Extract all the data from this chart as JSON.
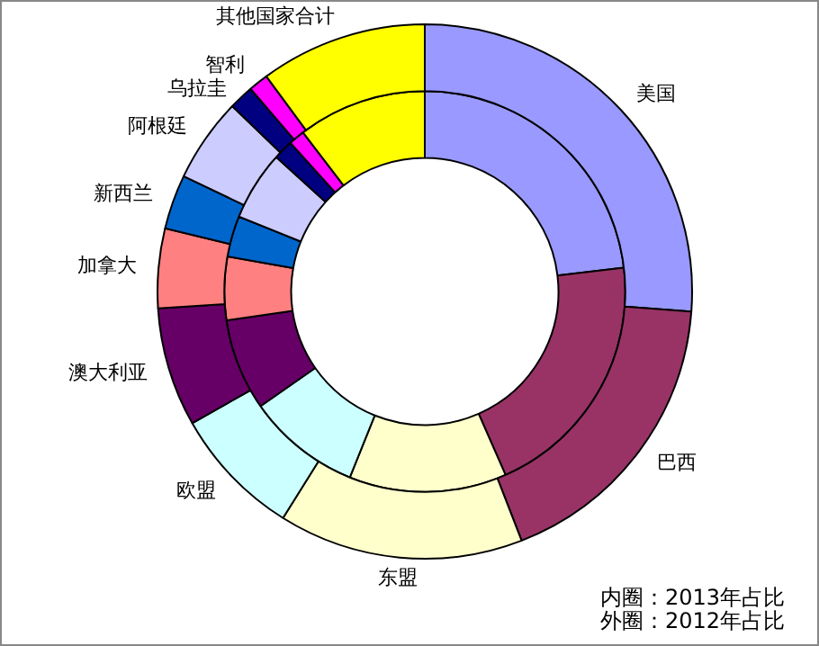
{
  "chart_data": {
    "type": "donut",
    "categories": [
      "美国",
      "巴西",
      "东盟",
      "欧盟",
      "澳大利亚",
      "加拿大",
      "新西兰",
      "阿根廷",
      "乌拉圭",
      "智利",
      "其他国家合计"
    ],
    "colors": [
      "#9999ff",
      "#993366",
      "#ffffcc",
      "#ccffff",
      "#660066",
      "#ff8080",
      "#0066cc",
      "#ccccff",
      "#000080",
      "#ff00ff",
      "#ffff00"
    ],
    "series": [
      {
        "values": [
          26.2,
          17.9,
          14.8,
          7.9,
          7.2,
          4.8,
          3.3,
          5.1,
          1.5,
          1.2,
          10.1
        ]
      },
      {
        "values": [
          23.1,
          20.3,
          12.7,
          9.2,
          7.4,
          5.1,
          3.3,
          5.6,
          1.6,
          1.3,
          10.4
        ]
      }
    ],
    "annotations": [
      "内圈：2013年占比",
      "外圈：2012年占比"
    ],
    "legend": false
  }
}
